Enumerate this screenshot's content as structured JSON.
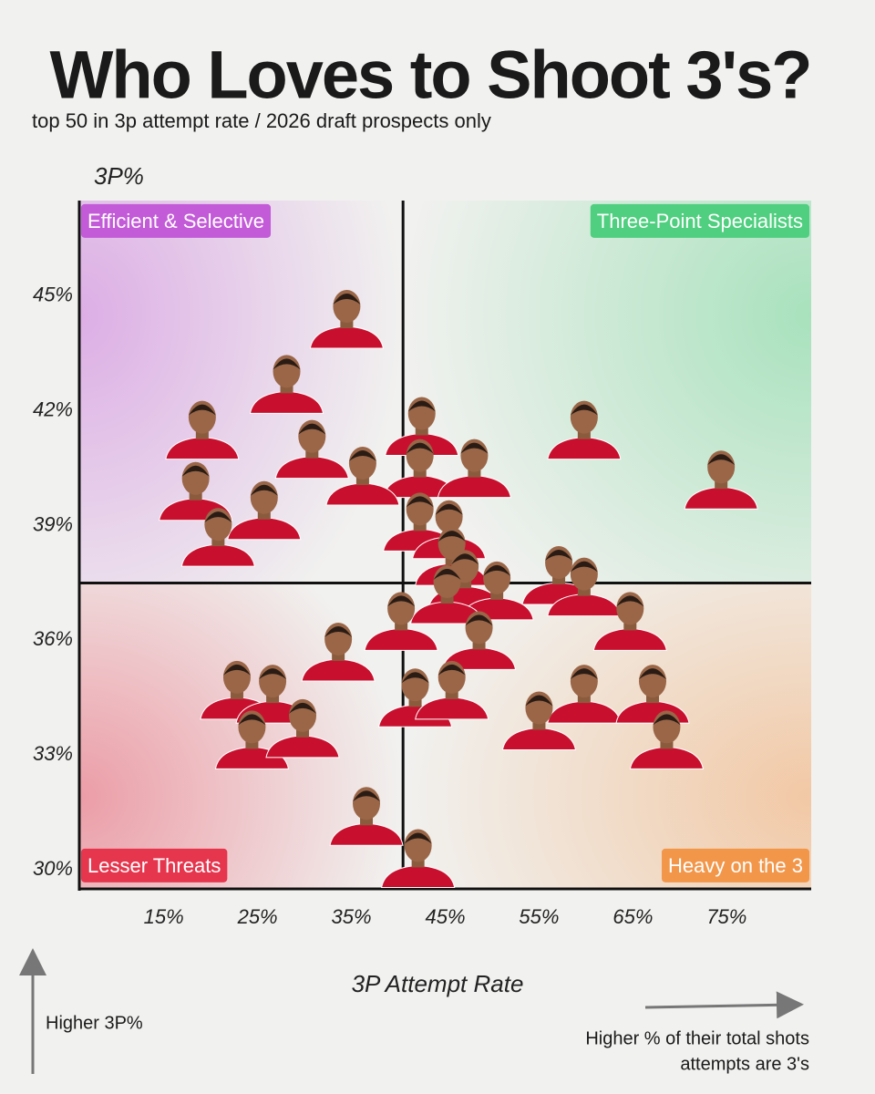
{
  "chart_data": {
    "type": "scatter",
    "title": "Who Loves to Shoot 3's?",
    "subtitle": "top 50 in 3p attempt rate / 2026 draft prospects only",
    "y_label": "3P%",
    "x_label": "3P Attempt Rate",
    "xlim": [
      6,
      84
    ],
    "ylim": [
      29.5,
      47.5
    ],
    "xticks": [
      {
        "value": 15,
        "label": "15%"
      },
      {
        "value": 25,
        "label": "25%"
      },
      {
        "value": 35,
        "label": "35%"
      },
      {
        "value": 45,
        "label": "45%"
      },
      {
        "value": 55,
        "label": "55%"
      },
      {
        "value": 65,
        "label": "65%"
      },
      {
        "value": 75,
        "label": "75%"
      }
    ],
    "yticks": [
      {
        "value": 30,
        "label": "30%"
      },
      {
        "value": 33,
        "label": "33%"
      },
      {
        "value": 36,
        "label": "36%"
      },
      {
        "value": 39,
        "label": "39%"
      },
      {
        "value": 42,
        "label": "42%"
      },
      {
        "value": 45,
        "label": "45%"
      }
    ],
    "quadrant_lines": {
      "x": 40.5,
      "y": 37.5
    },
    "quadrants": [
      {
        "label": "Efficient  & Selective",
        "color": "#c35bd9",
        "corner": "top-left"
      },
      {
        "label": "Three-Point Specialists",
        "color": "#4fcf7f",
        "corner": "top-right"
      },
      {
        "label": "Lesser Threats",
        "color": "#e5364e",
        "corner": "bottom-left"
      },
      {
        "label": "Heavy on the 3",
        "color": "#f2964a",
        "corner": "bottom-right"
      }
    ],
    "notes": {
      "y_arrow": "Higher 3P%",
      "x_arrow": [
        "Higher % of their total shots",
        "attempts are 3's"
      ]
    },
    "series": [
      {
        "color": "#c8102e",
        "x": [
          34.5,
          28.1,
          19.1,
          30.8,
          42.5,
          59.8,
          74.4,
          42.3,
          48.1,
          36.2,
          18.4,
          25.7,
          20.8,
          42.3,
          45.4,
          45.7,
          57.1,
          59.8,
          47.1,
          50.5,
          45.2,
          40.3,
          64.7,
          33.6,
          48.6,
          22.8,
          26.6,
          41.8,
          45.7,
          59.8,
          67.1,
          55.0,
          24.4,
          29.8,
          68.6,
          36.6,
          42.1
        ],
        "values": [
          44.4,
          42.7,
          41.5,
          41.0,
          41.6,
          41.5,
          40.2,
          40.5,
          40.5,
          40.3,
          39.9,
          39.4,
          38.7,
          39.1,
          38.9,
          38.2,
          37.7,
          37.4,
          37.6,
          37.3,
          37.2,
          36.5,
          36.5,
          35.7,
          36.0,
          34.7,
          34.6,
          34.5,
          34.7,
          34.6,
          34.6,
          33.9,
          33.4,
          33.7,
          33.4,
          31.4,
          30.3
        ]
      }
    ]
  }
}
